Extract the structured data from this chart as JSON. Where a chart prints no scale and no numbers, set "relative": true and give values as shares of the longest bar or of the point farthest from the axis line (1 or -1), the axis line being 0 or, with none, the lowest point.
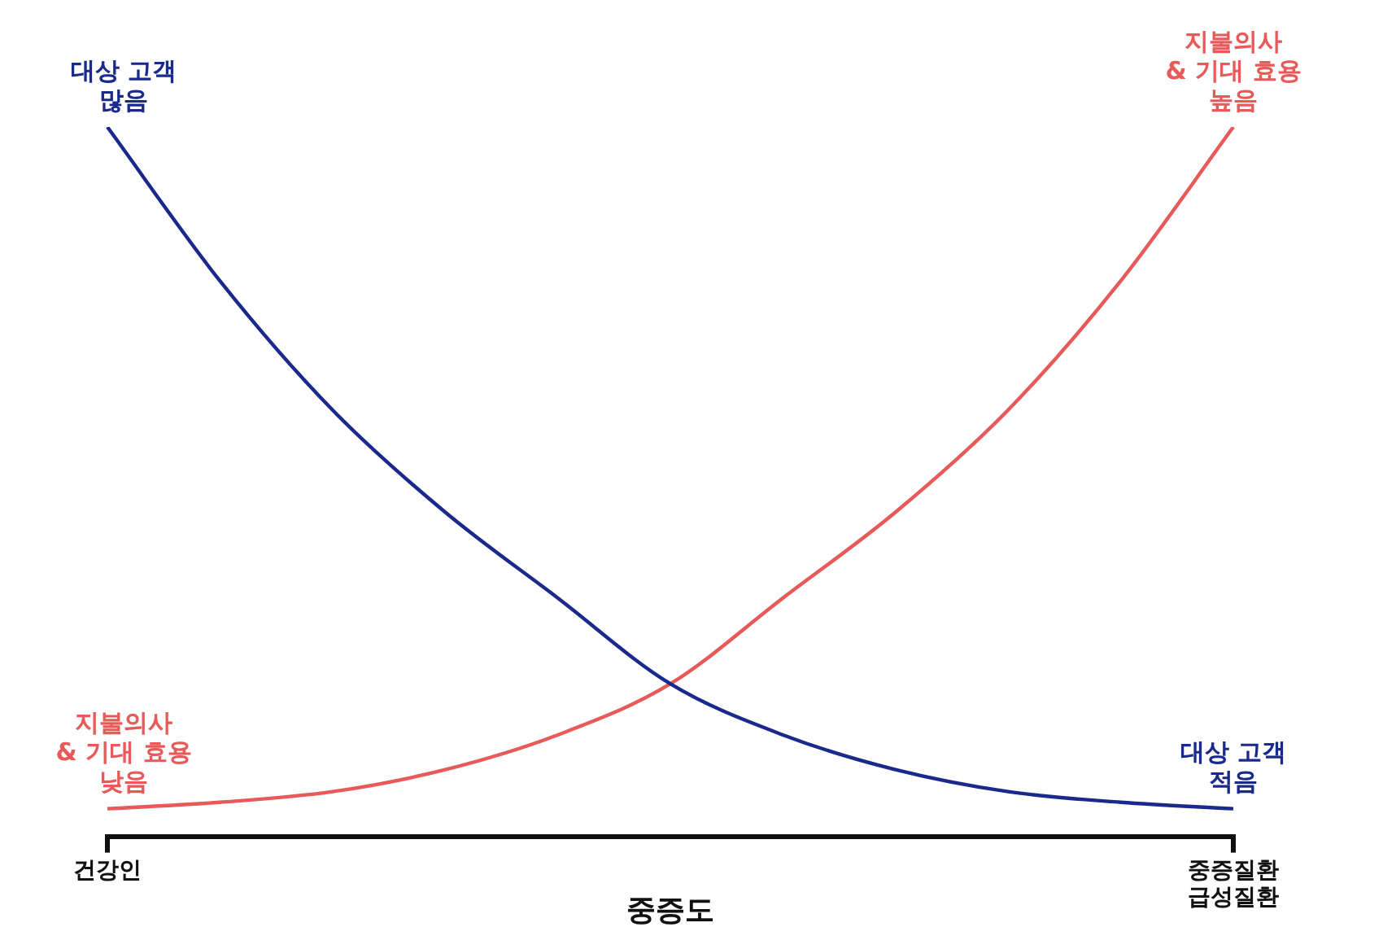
{
  "chart_data": {
    "type": "line",
    "relative": true,
    "xlabel": "중증도",
    "categories": [
      "건강인",
      null,
      null,
      null,
      null,
      null,
      null,
      null,
      null,
      null,
      "중증질환\n급성질환"
    ],
    "series": [
      {
        "color": "#1a2a8c",
        "values": [
          1,
          0.783,
          0.601,
          0.457,
          0.336,
          0.215,
          0.143,
          0.094,
          0.063,
          0.048,
          0.039
        ]
      },
      {
        "color": "#e85a5a",
        "values": [
          0.039,
          0.048,
          0.063,
          0.094,
          0.143,
          0.215,
          0.336,
          0.457,
          0.601,
          0.783,
          1
        ]
      }
    ],
    "annotations": [
      {
        "text": "대상 고객\n많음",
        "x": "건강인",
        "y": 1
      },
      {
        "text": "지불의사\n& 기대 효용\n낮음",
        "x": "건강인",
        "y": 0.039
      },
      {
        "text": "지불의사\n& 기대 효용\n높음",
        "x": "중증질환\n급성질환",
        "y": 1
      },
      {
        "text": "대상 고객\n적음",
        "x": "중증질환\n급성질환",
        "y": 0.039
      }
    ],
    "legend": false,
    "grid": false,
    "marker": "none",
    "line_style": "solid"
  }
}
